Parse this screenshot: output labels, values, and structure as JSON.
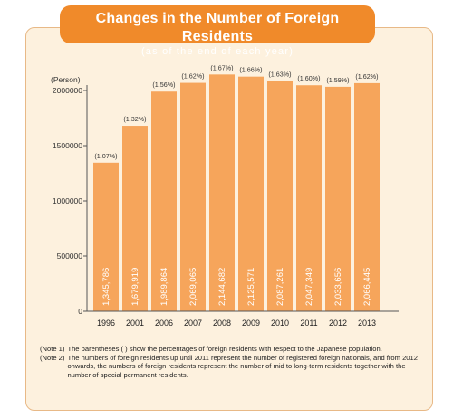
{
  "colors": {
    "bar": "#f6a55b",
    "bar_value_text": "#ffffff",
    "axis": "#555555",
    "panel_bg": "#fdf1de",
    "title_bg": "#f08a2a"
  },
  "chart_data": {
    "type": "bar",
    "title": "Changes in the Number of Foreign Residents",
    "subtitle": "(as of the end of each year)",
    "ylabel": "(Person)",
    "xlabel": "",
    "ylim": [
      0,
      2150000
    ],
    "yticks": [
      0,
      500000,
      1000000,
      1500000,
      2000000
    ],
    "ytick_labels": [
      "0",
      "500000",
      "1000000",
      "1500000",
      "2000000"
    ],
    "categories": [
      "1996",
      "2001",
      "2006",
      "2007",
      "2008",
      "2009",
      "2010",
      "2011",
      "2012",
      "2013"
    ],
    "values": [
      1345786,
      1679919,
      1989864,
      2069065,
      2144682,
      2125571,
      2087261,
      2047349,
      2033656,
      2066445
    ],
    "value_labels": [
      "1,345,786",
      "1,679,919",
      "1,989,864",
      "2,069,065",
      "2,144,682",
      "2,125,571",
      "2,087,261",
      "2,047,349",
      "2,033,656",
      "2,066,445"
    ],
    "percent_labels": [
      "(1.07%)",
      "(1.32%)",
      "(1.56%)",
      "(1.62%)",
      "(1.67%)",
      "(1.66%)",
      "(1.63%)",
      "(1.60%)",
      "(1.59%)",
      "(1.62%)"
    ],
    "grid": false,
    "legend": "none"
  },
  "notes": [
    {
      "tag": "(Note 1)",
      "text": "The parentheses ( ) show the percentages of foreign residents with respect to the Japanese population."
    },
    {
      "tag": "(Note 2)",
      "text": "The numbers of foreign residents up until 2011 represent the number of registered foreign nationals, and from 2012 onwards, the numbers of foreign residents represent the number of mid to long-term residents together with the number of special permanent residents."
    }
  ]
}
